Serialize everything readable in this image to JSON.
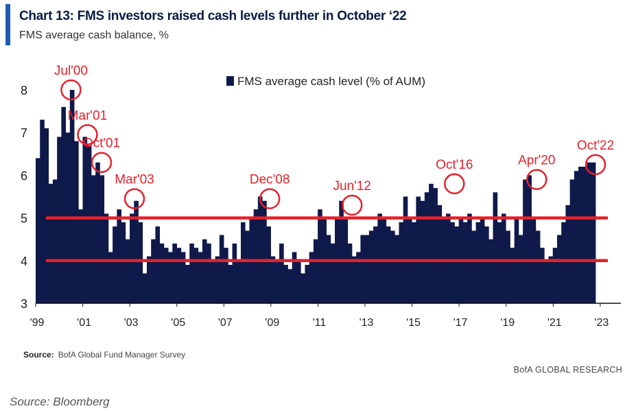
{
  "header": {
    "title": "Chart 13: FMS investors raised cash levels further in October ‘22",
    "subtitle": "FMS average cash balance, %"
  },
  "source_label": "Source:",
  "source_text": "BofA Global Fund Manager Survey",
  "credit": "BofA GLOBAL RESEARCH",
  "footer": "Source: Bloomberg",
  "colors": {
    "bars": "#0f1a4a",
    "markers": "#e8202a",
    "accent": "#1f5bb5"
  },
  "chart_data": {
    "type": "bar",
    "legend": "FMS average cash level (% of AUM)",
    "legend_position": "top-center",
    "ylim": [
      3,
      8.3
    ],
    "yticks": [
      "3",
      "4",
      "5",
      "6",
      "7",
      "8"
    ],
    "xticks": [
      "'99",
      "'01",
      "'03",
      "'05",
      "'07",
      "'09",
      "'11",
      "'13",
      "'15",
      "'17",
      "'19",
      "'21",
      "'23"
    ],
    "reference_lines": [
      5,
      4
    ],
    "start_year": 1999.0,
    "values": [
      6.4,
      7.3,
      7.1,
      5.8,
      5.9,
      6.9,
      7.6,
      7.0,
      8.0,
      6.8,
      5.2,
      6.9,
      6.7,
      6.0,
      6.3,
      6.0,
      5.1,
      4.2,
      4.8,
      5.2,
      4.9,
      4.5,
      5.1,
      5.4,
      4.9,
      3.7,
      4.1,
      4.5,
      4.8,
      4.4,
      4.3,
      4.2,
      4.4,
      4.3,
      4.2,
      3.9,
      4.4,
      4.3,
      4.2,
      4.5,
      4.4,
      4.0,
      4.1,
      4.6,
      4.3,
      3.9,
      4.4,
      4.0,
      4.9,
      4.7,
      5.0,
      5.2,
      5.5,
      5.4,
      4.8,
      4.1,
      4.0,
      4.4,
      3.9,
      3.8,
      4.2,
      4.0,
      3.7,
      3.9,
      4.2,
      4.5,
      5.2,
      5.0,
      4.6,
      4.4,
      5.0,
      5.4,
      5.0,
      4.4,
      4.1,
      4.2,
      4.6,
      4.6,
      4.7,
      4.8,
      5.1,
      5.0,
      4.8,
      4.7,
      4.6,
      4.9,
      5.5,
      5.0,
      4.9,
      5.5,
      5.4,
      5.6,
      5.8,
      5.7,
      5.3,
      5.0,
      5.1,
      4.9,
      4.8,
      5.0,
      4.9,
      5.1,
      4.7,
      4.9,
      5.0,
      4.8,
      4.5,
      5.6,
      4.9,
      5.1,
      4.7,
      4.3,
      5.0,
      4.6,
      5.9,
      6.0,
      5.0,
      4.7,
      4.3,
      4.0,
      4.1,
      4.3,
      4.6,
      4.9,
      5.3,
      5.9,
      6.1,
      6.2,
      6.2,
      6.3,
      6.3
    ],
    "annotations": [
      {
        "label": "Jul'00",
        "x": 2000.5,
        "y": 8.0
      },
      {
        "label": "Mar'01",
        "x": 2001.2,
        "y": 6.95
      },
      {
        "label": "Oct'01",
        "x": 2001.8,
        "y": 6.3
      },
      {
        "label": "Mar'03",
        "x": 2003.2,
        "y": 5.45
      },
      {
        "label": "Dec'08",
        "x": 2008.95,
        "y": 5.45
      },
      {
        "label": "Jun'12",
        "x": 2012.45,
        "y": 5.3
      },
      {
        "label": "Oct'16",
        "x": 2016.8,
        "y": 5.8
      },
      {
        "label": "Apr'20",
        "x": 2020.3,
        "y": 5.9
      },
      {
        "label": "Oct'22",
        "x": 2022.8,
        "y": 6.25
      }
    ]
  }
}
